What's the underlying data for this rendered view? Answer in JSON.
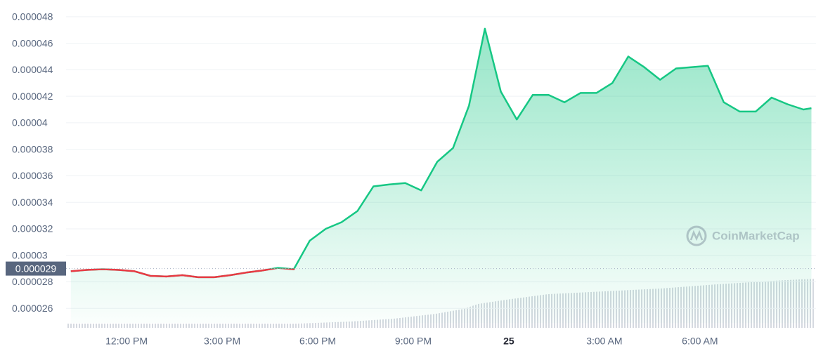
{
  "chart_data": {
    "type": "line",
    "x": [
      10.25,
      10.75,
      11.25,
      11.75,
      12.25,
      12.75,
      13.25,
      13.75,
      14.25,
      14.75,
      15.25,
      15.75,
      16.25,
      16.75,
      17.25,
      17.75,
      18.25,
      18.75,
      19.25,
      19.75,
      20.25,
      20.75,
      21.25,
      21.75,
      22.25,
      22.75,
      23.25,
      23.75,
      24.25,
      24.75,
      25.25,
      25.75,
      26.25,
      26.75,
      27.25,
      27.75,
      28.25,
      28.75,
      29.25,
      29.75,
      30.25,
      30.75,
      31.25,
      31.75,
      32.25,
      32.75,
      33.25,
      33.5
    ],
    "series": [
      {
        "color": "#16c784",
        "below_color": "#ea3943",
        "values": [
          2.88e-05,
          2.89e-05,
          2.895e-05,
          2.89e-05,
          2.88e-05,
          2.845e-05,
          2.84e-05,
          2.85e-05,
          2.835e-05,
          2.835e-05,
          2.85e-05,
          2.87e-05,
          2.885e-05,
          2.905e-05,
          2.895e-05,
          3.11e-05,
          3.2e-05,
          3.25e-05,
          3.335e-05,
          3.52e-05,
          3.535e-05,
          3.545e-05,
          3.49e-05,
          3.705e-05,
          3.81e-05,
          4.13e-05,
          4.71e-05,
          4.235e-05,
          4.025e-05,
          4.21e-05,
          4.21e-05,
          4.155e-05,
          4.225e-05,
          4.225e-05,
          4.3e-05,
          4.5e-05,
          4.42e-05,
          4.325e-05,
          4.41e-05,
          4.42e-05,
          4.43e-05,
          4.155e-05,
          4.085e-05,
          4.085e-05,
          4.19e-05,
          4.14e-05,
          4.1e-05,
          4.11e-05
        ]
      }
    ],
    "baseline": 2.9e-05,
    "xlim": [
      10.1,
      33.6
    ],
    "xticks": [
      {
        "value": 12,
        "label": "12:00 PM"
      },
      {
        "value": 15,
        "label": "3:00 PM"
      },
      {
        "value": 18,
        "label": "6:00 PM"
      },
      {
        "value": 21,
        "label": "9:00 PM"
      },
      {
        "value": 24,
        "label": "25"
      },
      {
        "value": 27,
        "label": "3:00 AM"
      },
      {
        "value": 30,
        "label": "6:00 AM"
      }
    ],
    "ylim": [
      2.49e-05,
      4.9e-05
    ],
    "yticks": [
      2.6e-05,
      2.8e-05,
      3e-05,
      3.2e-05,
      3.4e-05,
      3.6e-05,
      3.8e-05,
      4e-05,
      4.2e-05,
      4.4e-05,
      4.6e-05,
      4.8e-05
    ],
    "grid": true,
    "watermark": "CoinMarketCap"
  }
}
